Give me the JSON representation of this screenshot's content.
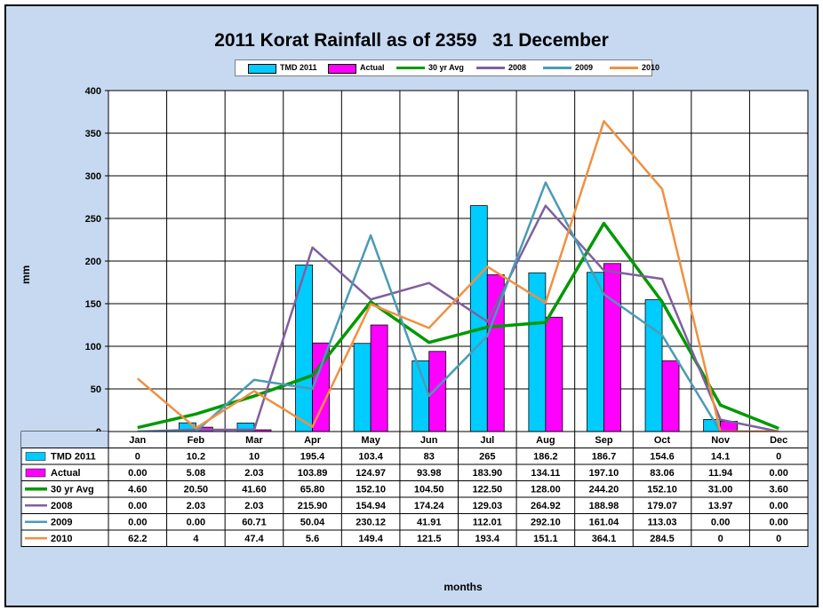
{
  "chart_data": {
    "type": "bar",
    "title": "2011 Korat Rainfall as of 2359   31 December",
    "xlabel": "months",
    "ylabel": "mm",
    "ylim": [
      0,
      400
    ],
    "yticks": [
      "0",
      "50",
      "100",
      "150",
      "200",
      "250",
      "300",
      "350",
      "400"
    ],
    "grid": true,
    "legend_position": "top",
    "categories": [
      "Jan",
      "Feb",
      "Mar",
      "Apr",
      "May",
      "Jun",
      "Jul",
      "Aug",
      "Sep",
      "Oct",
      "Nov",
      "Dec"
    ],
    "series": [
      {
        "name": "TMD 2011",
        "kind": "bar",
        "color": "#00ccff",
        "values": [
          0,
          10.2,
          10,
          195.4,
          103.4,
          83,
          265,
          186.2,
          186.7,
          154.6,
          14.1,
          0
        ],
        "labels": [
          "0",
          "10.2",
          "10",
          "195.4",
          "103.4",
          "83",
          "265",
          "186.2",
          "186.7",
          "154.6",
          "14.1",
          "0"
        ]
      },
      {
        "name": "Actual",
        "kind": "bar",
        "color": "#ff00ff",
        "values": [
          0.0,
          5.08,
          2.03,
          103.89,
          124.97,
          93.98,
          183.9,
          134.11,
          197.1,
          83.06,
          11.94,
          0.0
        ],
        "labels": [
          "0.00",
          "5.08",
          "2.03",
          "103.89",
          "124.97",
          "93.98",
          "183.90",
          "134.11",
          "197.10",
          "83.06",
          "11.94",
          "0.00"
        ]
      },
      {
        "name": "30 yr Avg",
        "kind": "line",
        "color": "#009900",
        "values": [
          4.6,
          20.5,
          41.6,
          65.8,
          152.1,
          104.5,
          122.5,
          128.0,
          244.2,
          152.1,
          31.0,
          3.6
        ],
        "labels": [
          "4.60",
          "20.50",
          "41.60",
          "65.80",
          "152.10",
          "104.50",
          "122.50",
          "128.00",
          "244.20",
          "152.10",
          "31.00",
          "3.60"
        ]
      },
      {
        "name": "2008",
        "kind": "line",
        "color": "#7f5fa0",
        "values": [
          0.0,
          2.03,
          2.03,
          215.9,
          154.94,
          174.24,
          129.03,
          264.92,
          188.98,
          179.07,
          13.97,
          0.0
        ],
        "labels": [
          "0.00",
          "2.03",
          "2.03",
          "215.90",
          "154.94",
          "174.24",
          "129.03",
          "264.92",
          "188.98",
          "179.07",
          "13.97",
          "0.00"
        ]
      },
      {
        "name": "2009",
        "kind": "line",
        "color": "#4a9bb5",
        "values": [
          0.0,
          0.0,
          60.71,
          50.04,
          230.12,
          41.91,
          112.01,
          292.1,
          161.04,
          113.03,
          0.0,
          0.0
        ],
        "labels": [
          "0.00",
          "0.00",
          "60.71",
          "50.04",
          "230.12",
          "41.91",
          "112.01",
          "292.10",
          "161.04",
          "113.03",
          "0.00",
          "0.00"
        ]
      },
      {
        "name": "2010",
        "kind": "line",
        "color": "#f09040",
        "values": [
          62.2,
          4,
          47.4,
          5.6,
          149.4,
          121.5,
          193.4,
          151.1,
          364.1,
          284.5,
          0,
          0
        ],
        "labels": [
          "62.2",
          "4",
          "47.4",
          "5.6",
          "149.4",
          "121.5",
          "193.4",
          "151.1",
          "364.1",
          "284.5",
          "0",
          "0"
        ]
      }
    ]
  }
}
